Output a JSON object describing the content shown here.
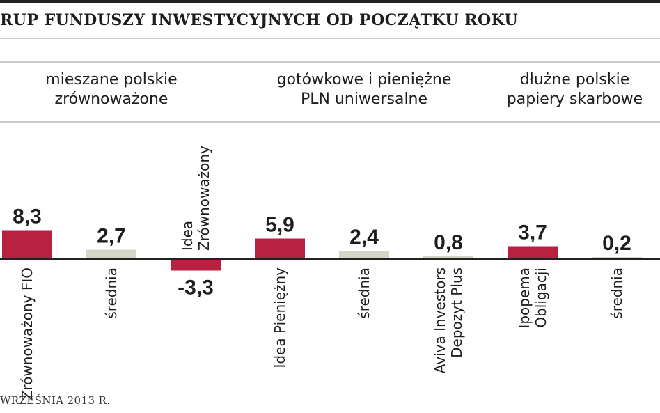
{
  "chart_data": {
    "type": "bar",
    "title": "RUP FUNDUSZY INWESTYCYJNYCH OD POCZĄTKU ROKU",
    "footnote": "WRZEŚNIA 2013 R.",
    "xlabel": "",
    "ylabel": "",
    "colors": {
      "fund": "#b8213f",
      "average": "#d6d6c8",
      "axis": "#222222",
      "rule": "#9a9a9a",
      "text": "#1e1e1e"
    },
    "groups": [
      {
        "label": "mieszane polskie zrównoważone",
        "bars": [
          {
            "name": "Zrównoważony FIO",
            "value": 8.3,
            "label": "8,3",
            "kind": "fund"
          },
          {
            "name": "średnia",
            "value": 2.7,
            "label": "2,7",
            "kind": "average"
          },
          {
            "name": "Idea Zrównoważony",
            "value": -3.3,
            "label": "-3,3",
            "kind": "fund"
          }
        ]
      },
      {
        "label": "gotówkowe i pieniężne PLN uniwersalne",
        "bars": [
          {
            "name": "Idea Pieniężny",
            "value": 5.9,
            "label": "5,9",
            "kind": "fund"
          },
          {
            "name": "średnia",
            "value": 2.4,
            "label": "2,4",
            "kind": "average"
          },
          {
            "name": "Aviva Investors Depozyt Plus",
            "value": 0.8,
            "label": "0,8",
            "kind": "average"
          }
        ]
      },
      {
        "label": "dłużne polskie papiery skarbowe",
        "bars": [
          {
            "name": "Ipopema Obligacji",
            "value": 3.7,
            "label": "3,7",
            "kind": "fund"
          },
          {
            "name": "średnia",
            "value": 0.2,
            "label": "0,2",
            "kind": "average"
          }
        ]
      }
    ]
  }
}
